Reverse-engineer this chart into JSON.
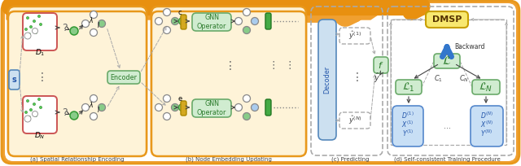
{
  "fig_width": 6.4,
  "fig_height": 2.04,
  "dpi": 100,
  "title_a": "(a) Spatial Relationship Encoding",
  "title_b": "(b) Node Embedding Updating",
  "title_c": "(c) Predicting",
  "title_d": "(d) Self-consistent Training Procedure",
  "colors": {
    "orange_outer": "#f0a030",
    "orange_light": "#fef3d8",
    "orange_border": "#e8981c",
    "white": "#ffffff",
    "green_box_fc": "#d0ecd0",
    "green_box_ec": "#6aaa6a",
    "green_dark": "#2a7a2a",
    "green_node": "#88cc88",
    "blue_box_fc": "#cce0f0",
    "blue_box_ec": "#5588bb",
    "blue_dark": "#2255aa",
    "blue_arrow": "#3377cc",
    "yellow_box_fc": "#f8e870",
    "yellow_box_ec": "#c8a000",
    "yellow_dark": "#553300",
    "yellow_bar_fc": "#d4a820",
    "yellow_bar_ec": "#aa8800",
    "red_border": "#cc5555",
    "green_bar_fc": "#44aa44",
    "green_bar_ec": "#227722",
    "node_white": "#ffffff",
    "node_edge": "#888888",
    "arrow_dark": "#444444",
    "dashed_col": "#aaaaaa",
    "text_dark": "#333333",
    "blue_rect_fc": "#c8dff5",
    "blue_rect_ec": "#5588cc"
  }
}
